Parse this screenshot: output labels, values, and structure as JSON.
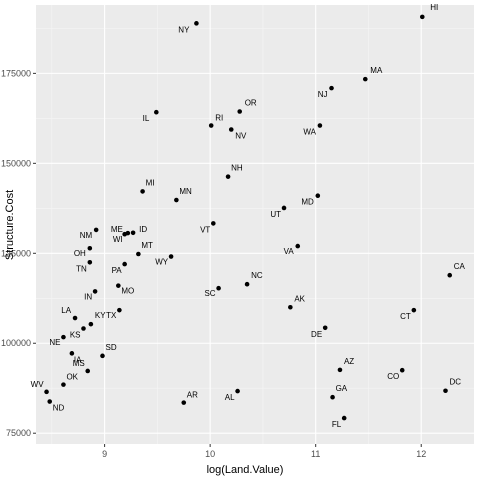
{
  "chart_data": {
    "type": "scatter",
    "xlabel": "log(Land.Value)",
    "ylabel": "Structure.Cost",
    "xlim": [
      8.35,
      12.5
    ],
    "ylim": [
      72000,
      194000
    ],
    "x_ticks": [
      9,
      10,
      11,
      12
    ],
    "y_ticks": [
      75000,
      100000,
      125000,
      150000,
      175000
    ],
    "y_tick_labels": [
      "75000",
      "100000",
      "125000",
      "150000",
      "175000"
    ],
    "grid": true,
    "colors": {
      "panel": "#ebebeb",
      "grid_major": "#ffffff",
      "grid_minor": "#f5f5f5",
      "point": "#000000"
    },
    "points": [
      {
        "label": "HI",
        "x": 12.01,
        "y": 190700
      },
      {
        "label": "NY",
        "x": 9.87,
        "y": 188900
      },
      {
        "label": "MA",
        "x": 11.47,
        "y": 173400
      },
      {
        "label": "NJ",
        "x": 11.15,
        "y": 170900
      },
      {
        "label": "IL",
        "x": 9.49,
        "y": 164200
      },
      {
        "label": "OR",
        "x": 10.28,
        "y": 164400
      },
      {
        "label": "RI",
        "x": 10.01,
        "y": 160500
      },
      {
        "label": "NV",
        "x": 10.2,
        "y": 159400
      },
      {
        "label": "WA",
        "x": 11.04,
        "y": 160500
      },
      {
        "label": "NH",
        "x": 10.17,
        "y": 146300
      },
      {
        "label": "MI",
        "x": 9.36,
        "y": 142200
      },
      {
        "label": "MN",
        "x": 9.68,
        "y": 139800
      },
      {
        "label": "MD",
        "x": 11.02,
        "y": 141000
      },
      {
        "label": "UT",
        "x": 10.7,
        "y": 137600
      },
      {
        "label": "VT",
        "x": 10.03,
        "y": 133300
      },
      {
        "label": "ME",
        "x": 9.22,
        "y": 130600
      },
      {
        "label": "ID",
        "x": 9.27,
        "y": 130700
      },
      {
        "label": "NM",
        "x": 8.92,
        "y": 131500
      },
      {
        "label": "WI",
        "x": 9.19,
        "y": 130300
      },
      {
        "label": "MT",
        "x": 9.32,
        "y": 124800
      },
      {
        "label": "OH",
        "x": 8.86,
        "y": 126400
      },
      {
        "label": "VA",
        "x": 10.83,
        "y": 127000
      },
      {
        "label": "WY",
        "x": 9.63,
        "y": 124100
      },
      {
        "label": "TN",
        "x": 8.86,
        "y": 122500
      },
      {
        "label": "PA",
        "x": 9.19,
        "y": 122000
      },
      {
        "label": "CA",
        "x": 12.27,
        "y": 118900
      },
      {
        "label": "NC",
        "x": 10.35,
        "y": 116400
      },
      {
        "label": "SC",
        "x": 10.08,
        "y": 115300
      },
      {
        "label": "MO",
        "x": 9.13,
        "y": 116000
      },
      {
        "label": "IN",
        "x": 8.91,
        "y": 114400
      },
      {
        "label": "AK",
        "x": 10.76,
        "y": 110000
      },
      {
        "label": "CT",
        "x": 11.93,
        "y": 109200
      },
      {
        "label": "TX",
        "x": 9.14,
        "y": 109200
      },
      {
        "label": "LA",
        "x": 8.72,
        "y": 107000
      },
      {
        "label": "KY",
        "x": 8.87,
        "y": 105300
      },
      {
        "label": "KS",
        "x": 8.8,
        "y": 104100
      },
      {
        "label": "DE",
        "x": 11.09,
        "y": 104300
      },
      {
        "label": "NE",
        "x": 8.61,
        "y": 101700
      },
      {
        "label": "SD",
        "x": 8.98,
        "y": 96500
      },
      {
        "label": "IA",
        "x": 8.69,
        "y": 97200
      },
      {
        "label": "MS",
        "x": 8.84,
        "y": 92300
      },
      {
        "label": "AZ",
        "x": 11.23,
        "y": 92600
      },
      {
        "label": "CO",
        "x": 11.82,
        "y": 92500
      },
      {
        "label": "OK",
        "x": 8.61,
        "y": 88500
      },
      {
        "label": "WV",
        "x": 8.45,
        "y": 86500
      },
      {
        "label": "DC",
        "x": 12.23,
        "y": 86800
      },
      {
        "label": "AL",
        "x": 10.26,
        "y": 86700
      },
      {
        "label": "GA",
        "x": 11.16,
        "y": 85000
      },
      {
        "label": "ND",
        "x": 8.48,
        "y": 83800
      },
      {
        "label": "AR",
        "x": 9.75,
        "y": 83500
      },
      {
        "label": "FL",
        "x": 11.27,
        "y": 79200
      }
    ]
  }
}
